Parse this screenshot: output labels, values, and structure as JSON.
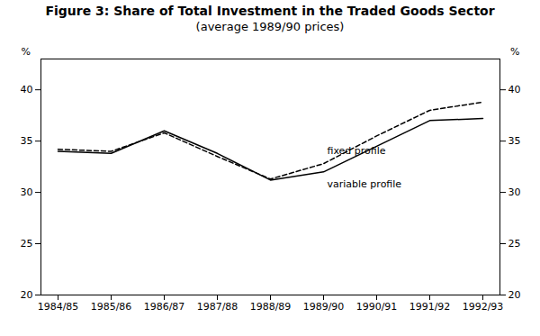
{
  "chart_data": {
    "type": "line",
    "title": "Figure 3: Share of Total Investment in the Traded Goods Sector",
    "subtitle": "(average 1989/90 prices)",
    "categories": [
      "1984/85",
      "1985/86",
      "1986/87",
      "1987/88",
      "1988/89",
      "1989/90",
      "1990/91",
      "1991/92",
      "1992/93"
    ],
    "series": [
      {
        "name": "variable profile",
        "color": "#000000",
        "line_style": "solid",
        "values": [
          34.0,
          33.8,
          36.0,
          33.8,
          31.2,
          32.0,
          34.5,
          37.0,
          37.2
        ]
      },
      {
        "name": "fixed profile",
        "color": "#000000",
        "line_style": "dashed",
        "values": [
          34.2,
          34.0,
          35.8,
          33.5,
          31.3,
          32.8,
          35.5,
          38.0,
          38.8
        ]
      }
    ],
    "y_label": "%",
    "y2_label": "%",
    "ylim": [
      20,
      43
    ],
    "yticks": [
      20,
      25,
      30,
      35,
      40
    ],
    "y2lim": [
      20,
      43
    ],
    "y2ticks": [
      20,
      25,
      30,
      35,
      40
    ],
    "grid": false
  }
}
